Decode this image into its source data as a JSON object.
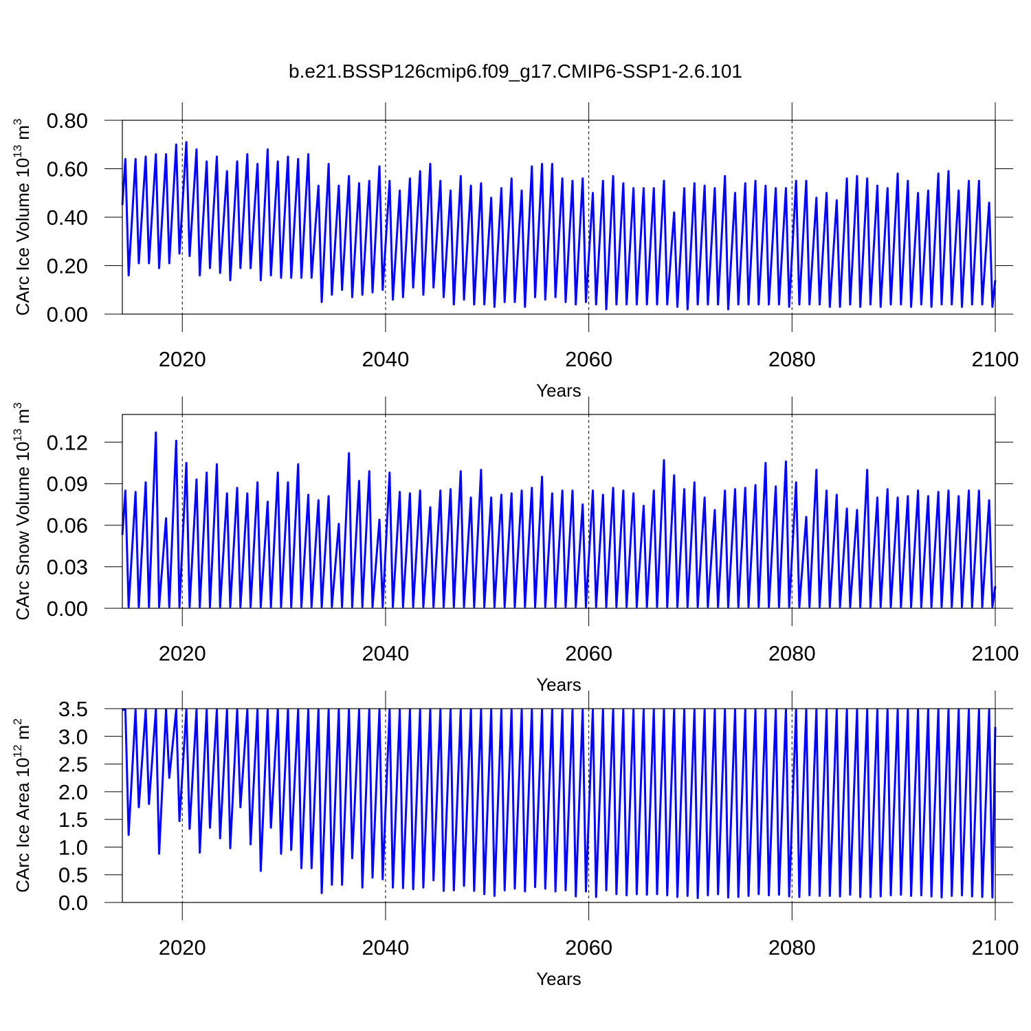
{
  "chart_data": [
    {
      "type": "line",
      "title": "b.e21.BSSP126cmip6.f09_g17.CMIP6-SSP1-2.6.101",
      "xlabel": "Years",
      "ylabel": {
        "text": "CArc Ice Volume 10",
        "exp": "13",
        "unit": "m",
        "unit_exp": "3"
      },
      "color": "#0000ff",
      "grid": true,
      "xlim": [
        2014.1,
        2100
      ],
      "xticks": [
        2020,
        2040,
        2060,
        2080,
        2100
      ],
      "ylim": [
        0,
        0.8
      ],
      "yticks": [
        {
          "value": 0,
          "label": "0.00"
        },
        {
          "value": 0.2,
          "label": "0.20"
        },
        {
          "value": 0.4,
          "label": "0.40"
        },
        {
          "value": 0.6,
          "label": "0.60"
        },
        {
          "value": 0.8,
          "label": "0.80"
        }
      ],
      "x": [
        2014.1,
        2014.4,
        2014.72,
        2015.4,
        2015.72,
        2016.4,
        2016.72,
        2017.4,
        2017.72,
        2018.4,
        2018.72,
        2019.4,
        2019.72,
        2020.4,
        2020.72,
        2021.4,
        2021.72,
        2022.4,
        2022.72,
        2023.4,
        2023.72,
        2024.4,
        2024.72,
        2025.4,
        2025.72,
        2026.4,
        2026.72,
        2027.4,
        2027.72,
        2028.4,
        2028.72,
        2029.4,
        2029.72,
        2030.4,
        2030.72,
        2031.4,
        2031.72,
        2032.4,
        2032.72,
        2033.4,
        2033.72,
        2034.4,
        2034.72,
        2035.4,
        2035.72,
        2036.4,
        2036.72,
        2037.4,
        2037.72,
        2038.4,
        2038.72,
        2039.4,
        2039.72,
        2040.4,
        2040.72,
        2041.4,
        2041.72,
        2042.4,
        2042.72,
        2043.4,
        2043.72,
        2044.4,
        2044.72,
        2045.4,
        2045.72,
        2046.4,
        2046.72,
        2047.4,
        2047.72,
        2048.4,
        2048.72,
        2049.4,
        2049.72,
        2050.4,
        2050.72,
        2051.4,
        2051.72,
        2052.4,
        2052.72,
        2053.4,
        2053.72,
        2054.4,
        2054.72,
        2055.4,
        2055.72,
        2056.4,
        2056.72,
        2057.4,
        2057.72,
        2058.4,
        2058.72,
        2059.4,
        2059.72,
        2060.4,
        2060.72,
        2061.4,
        2061.72,
        2062.4,
        2062.72,
        2063.4,
        2063.72,
        2064.4,
        2064.72,
        2065.4,
        2065.72,
        2066.4,
        2066.72,
        2067.4,
        2067.72,
        2068.4,
        2068.72,
        2069.4,
        2069.72,
        2070.4,
        2070.72,
        2071.4,
        2071.72,
        2072.4,
        2072.72,
        2073.4,
        2073.72,
        2074.4,
        2074.72,
        2075.4,
        2075.72,
        2076.4,
        2076.72,
        2077.4,
        2077.72,
        2078.4,
        2078.72,
        2079.4,
        2079.72,
        2080.4,
        2080.72,
        2081.4,
        2081.72,
        2082.4,
        2082.72,
        2083.4,
        2083.72,
        2084.4,
        2084.72,
        2085.4,
        2085.72,
        2086.4,
        2086.72,
        2087.4,
        2087.72,
        2088.4,
        2088.72,
        2089.4,
        2089.72,
        2090.4,
        2090.72,
        2091.4,
        2091.72,
        2092.4,
        2092.72,
        2093.4,
        2093.72,
        2094.4,
        2094.72,
        2095.4,
        2095.72,
        2096.4,
        2096.72,
        2097.4,
        2097.72,
        2098.4,
        2098.72,
        2099.4,
        2099.72,
        2100
      ],
      "values": [
        0.45,
        0.64,
        0.16,
        0.64,
        0.21,
        0.65,
        0.21,
        0.66,
        0.19,
        0.66,
        0.21,
        0.7,
        0.25,
        0.71,
        0.24,
        0.68,
        0.16,
        0.63,
        0.19,
        0.65,
        0.17,
        0.59,
        0.14,
        0.63,
        0.19,
        0.66,
        0.19,
        0.62,
        0.14,
        0.68,
        0.16,
        0.63,
        0.15,
        0.65,
        0.15,
        0.64,
        0.15,
        0.66,
        0.15,
        0.53,
        0.05,
        0.62,
        0.08,
        0.53,
        0.1,
        0.57,
        0.07,
        0.54,
        0.08,
        0.55,
        0.09,
        0.61,
        0.1,
        0.55,
        0.06,
        0.51,
        0.07,
        0.56,
        0.11,
        0.59,
        0.08,
        0.62,
        0.11,
        0.55,
        0.07,
        0.51,
        0.04,
        0.57,
        0.06,
        0.53,
        0.04,
        0.54,
        0.04,
        0.48,
        0.03,
        0.52,
        0.05,
        0.56,
        0.05,
        0.51,
        0.03,
        0.61,
        0.07,
        0.62,
        0.06,
        0.62,
        0.07,
        0.56,
        0.05,
        0.55,
        0.04,
        0.56,
        0.05,
        0.5,
        0.04,
        0.55,
        0.02,
        0.57,
        0.04,
        0.54,
        0.04,
        0.52,
        0.04,
        0.52,
        0.04,
        0.52,
        0.04,
        0.55,
        0.04,
        0.42,
        0.03,
        0.52,
        0.02,
        0.54,
        0.04,
        0.53,
        0.04,
        0.52,
        0.04,
        0.57,
        0.02,
        0.5,
        0.04,
        0.54,
        0.04,
        0.55,
        0.04,
        0.53,
        0.04,
        0.52,
        0.04,
        0.52,
        0.03,
        0.55,
        0.04,
        0.55,
        0.04,
        0.48,
        0.04,
        0.5,
        0.03,
        0.47,
        0.03,
        0.56,
        0.04,
        0.57,
        0.03,
        0.56,
        0.04,
        0.53,
        0.03,
        0.52,
        0.04,
        0.58,
        0.04,
        0.55,
        0.03,
        0.5,
        0.04,
        0.51,
        0.03,
        0.58,
        0.04,
        0.59,
        0.04,
        0.51,
        0.03,
        0.55,
        0.04,
        0.55,
        0.04,
        0.46,
        0.03,
        0.14
      ]
    },
    {
      "type": "line",
      "xlabel": "Years",
      "ylabel": {
        "text": "CArc Snow Volume 10",
        "exp": "13",
        "unit": "m",
        "unit_exp": "3"
      },
      "color": "#0000ff",
      "grid": true,
      "xlim": [
        2014.1,
        2100
      ],
      "xticks": [
        2020,
        2040,
        2060,
        2080,
        2100
      ],
      "ylim": [
        0,
        0.14
      ],
      "yticks": [
        {
          "value": 0,
          "label": "0.00"
        },
        0.03,
        0.06,
        0.09,
        0.12
      ],
      "x": [
        2014.1,
        2014.4,
        2014.72,
        2015.4,
        2015.72,
        2016.4,
        2016.72,
        2017.4,
        2017.72,
        2018.4,
        2018.72,
        2019.4,
        2019.72,
        2020.4,
        2020.72,
        2021.4,
        2021.72,
        2022.4,
        2022.72,
        2023.4,
        2023.72,
        2024.4,
        2024.72,
        2025.4,
        2025.72,
        2026.4,
        2026.72,
        2027.4,
        2027.72,
        2028.4,
        2028.72,
        2029.4,
        2029.72,
        2030.4,
        2030.72,
        2031.4,
        2031.72,
        2032.4,
        2032.72,
        2033.4,
        2033.72,
        2034.4,
        2034.72,
        2035.4,
        2035.72,
        2036.4,
        2036.72,
        2037.4,
        2037.72,
        2038.4,
        2038.72,
        2039.4,
        2039.72,
        2040.4,
        2040.72,
        2041.4,
        2041.72,
        2042.4,
        2042.72,
        2043.4,
        2043.72,
        2044.4,
        2044.72,
        2045.4,
        2045.72,
        2046.4,
        2046.72,
        2047.4,
        2047.72,
        2048.4,
        2048.72,
        2049.4,
        2049.72,
        2050.4,
        2050.72,
        2051.4,
        2051.72,
        2052.4,
        2052.72,
        2053.4,
        2053.72,
        2054.4,
        2054.72,
        2055.4,
        2055.72,
        2056.4,
        2056.72,
        2057.4,
        2057.72,
        2058.4,
        2058.72,
        2059.4,
        2059.72,
        2060.4,
        2060.72,
        2061.4,
        2061.72,
        2062.4,
        2062.72,
        2063.4,
        2063.72,
        2064.4,
        2064.72,
        2065.4,
        2065.72,
        2066.4,
        2066.72,
        2067.4,
        2067.72,
        2068.4,
        2068.72,
        2069.4,
        2069.72,
        2070.4,
        2070.72,
        2071.4,
        2071.72,
        2072.4,
        2072.72,
        2073.4,
        2073.72,
        2074.4,
        2074.72,
        2075.4,
        2075.72,
        2076.4,
        2076.72,
        2077.4,
        2077.72,
        2078.4,
        2078.72,
        2079.4,
        2079.72,
        2080.4,
        2080.72,
        2081.4,
        2081.72,
        2082.4,
        2082.72,
        2083.4,
        2083.72,
        2084.4,
        2084.72,
        2085.4,
        2085.72,
        2086.4,
        2086.72,
        2087.4,
        2087.72,
        2088.4,
        2088.72,
        2089.4,
        2089.72,
        2090.4,
        2090.72,
        2091.4,
        2091.72,
        2092.4,
        2092.72,
        2093.4,
        2093.72,
        2094.4,
        2094.72,
        2095.4,
        2095.72,
        2096.4,
        2096.72,
        2097.4,
        2097.72,
        2098.4,
        2098.72,
        2099.4,
        2099.72,
        2100
      ],
      "values": [
        0.053,
        0.085,
        0.001,
        0.084,
        0.001,
        0.091,
        0.001,
        0.127,
        0.001,
        0.065,
        0.001,
        0.121,
        0.001,
        0.105,
        0.001,
        0.093,
        0.001,
        0.098,
        0.001,
        0.104,
        0.001,
        0.083,
        0.001,
        0.087,
        0.001,
        0.083,
        0.001,
        0.091,
        0.001,
        0.077,
        0.001,
        0.098,
        0.001,
        0.091,
        0.001,
        0.104,
        0.001,
        0.082,
        0.001,
        0.078,
        0.001,
        0.081,
        0.001,
        0.061,
        0.001,
        0.112,
        0.001,
        0.092,
        0.001,
        0.099,
        0.001,
        0.064,
        0.001,
        0.098,
        0.001,
        0.084,
        0.001,
        0.083,
        0.001,
        0.085,
        0.001,
        0.073,
        0.001,
        0.085,
        0.001,
        0.086,
        0.001,
        0.099,
        0.001,
        0.08,
        0.001,
        0.1,
        0.001,
        0.08,
        0.001,
        0.082,
        0.001,
        0.083,
        0.001,
        0.085,
        0.001,
        0.087,
        0.001,
        0.095,
        0.001,
        0.083,
        0.001,
        0.085,
        0.001,
        0.085,
        0.001,
        0.075,
        0.001,
        0.085,
        0.001,
        0.082,
        0.001,
        0.087,
        0.001,
        0.085,
        0.001,
        0.083,
        0.001,
        0.074,
        0.001,
        0.085,
        0.001,
        0.107,
        0.001,
        0.096,
        0.001,
        0.086,
        0.001,
        0.091,
        0.001,
        0.08,
        0.001,
        0.071,
        0.001,
        0.085,
        0.001,
        0.086,
        0.001,
        0.087,
        0.001,
        0.089,
        0.001,
        0.105,
        0.001,
        0.088,
        0.001,
        0.106,
        0.001,
        0.091,
        0.001,
        0.066,
        0.001,
        0.1,
        0.001,
        0.085,
        0.001,
        0.082,
        0.001,
        0.072,
        0.001,
        0.071,
        0.001,
        0.1,
        0.001,
        0.08,
        0.001,
        0.086,
        0.001,
        0.08,
        0.001,
        0.081,
        0.001,
        0.085,
        0.001,
        0.081,
        0.001,
        0.084,
        0.001,
        0.085,
        0.001,
        0.081,
        0.001,
        0.085,
        0.001,
        0.085,
        0.001,
        0.078,
        0.001,
        0.016
      ]
    },
    {
      "type": "line",
      "xlabel": "Years",
      "ylabel": {
        "text": "CArc Ice Area 10",
        "exp": "12",
        "unit": "m",
        "unit_exp": "2"
      },
      "color": "#0000ff",
      "grid": true,
      "xlim": [
        2014.1,
        2100
      ],
      "xticks": [
        2020,
        2040,
        2060,
        2080,
        2100
      ],
      "ylim": [
        0,
        3.5
      ],
      "yticks": [
        {
          "value": 0,
          "label": "0.0"
        },
        0.5,
        {
          "value": 1,
          "label": "1.0"
        },
        1.5,
        {
          "value": 2,
          "label": "2.0"
        },
        2.5,
        {
          "value": 3,
          "label": "3.0"
        },
        3.5
      ],
      "x": [
        2014.1,
        2014.4,
        2014.72,
        2015.4,
        2015.72,
        2016.4,
        2016.72,
        2017.4,
        2017.72,
        2018.4,
        2018.72,
        2019.4,
        2019.72,
        2020.4,
        2020.72,
        2021.4,
        2021.72,
        2022.4,
        2022.72,
        2023.4,
        2023.72,
        2024.4,
        2024.72,
        2025.4,
        2025.72,
        2026.4,
        2026.72,
        2027.4,
        2027.72,
        2028.4,
        2028.72,
        2029.4,
        2029.72,
        2030.4,
        2030.72,
        2031.4,
        2031.72,
        2032.4,
        2032.72,
        2033.4,
        2033.72,
        2034.4,
        2034.72,
        2035.4,
        2035.72,
        2036.4,
        2036.72,
        2037.4,
        2037.72,
        2038.4,
        2038.72,
        2039.4,
        2039.72,
        2040.4,
        2040.72,
        2041.4,
        2041.72,
        2042.4,
        2042.72,
        2043.4,
        2043.72,
        2044.4,
        2044.72,
        2045.4,
        2045.72,
        2046.4,
        2046.72,
        2047.4,
        2047.72,
        2048.4,
        2048.72,
        2049.4,
        2049.72,
        2050.4,
        2050.72,
        2051.4,
        2051.72,
        2052.4,
        2052.72,
        2053.4,
        2053.72,
        2054.4,
        2054.72,
        2055.4,
        2055.72,
        2056.4,
        2056.72,
        2057.4,
        2057.72,
        2058.4,
        2058.72,
        2059.4,
        2059.72,
        2060.4,
        2060.72,
        2061.4,
        2061.72,
        2062.4,
        2062.72,
        2063.4,
        2063.72,
        2064.4,
        2064.72,
        2065.4,
        2065.72,
        2066.4,
        2066.72,
        2067.4,
        2067.72,
        2068.4,
        2068.72,
        2069.4,
        2069.72,
        2070.4,
        2070.72,
        2071.4,
        2071.72,
        2072.4,
        2072.72,
        2073.4,
        2073.72,
        2074.4,
        2074.72,
        2075.4,
        2075.72,
        2076.4,
        2076.72,
        2077.4,
        2077.72,
        2078.4,
        2078.72,
        2079.4,
        2079.72,
        2080.4,
        2080.72,
        2081.4,
        2081.72,
        2082.4,
        2082.72,
        2083.4,
        2083.72,
        2084.4,
        2084.72,
        2085.4,
        2085.72,
        2086.4,
        2086.72,
        2087.4,
        2087.72,
        2088.4,
        2088.72,
        2089.4,
        2089.72,
        2090.4,
        2090.72,
        2091.4,
        2091.72,
        2092.4,
        2092.72,
        2093.4,
        2093.72,
        2094.4,
        2094.72,
        2095.4,
        2095.72,
        2096.4,
        2096.72,
        2097.4,
        2097.72,
        2098.4,
        2098.72,
        2099.4,
        2099.72,
        2100
      ],
      "values": [
        3.48,
        3.48,
        1.22,
        3.48,
        1.72,
        3.48,
        1.78,
        3.48,
        0.88,
        3.48,
        2.25,
        3.48,
        1.47,
        3.48,
        1.33,
        3.48,
        0.9,
        3.48,
        1.35,
        3.48,
        1.16,
        3.48,
        0.98,
        3.48,
        1.72,
        3.48,
        1.05,
        3.48,
        0.57,
        3.48,
        1.35,
        3.48,
        0.88,
        3.48,
        0.95,
        3.48,
        0.62,
        3.48,
        0.62,
        3.48,
        0.17,
        3.48,
        0.32,
        3.48,
        0.32,
        3.48,
        0.8,
        3.48,
        0.27,
        3.48,
        0.45,
        3.48,
        0.42,
        3.48,
        0.27,
        3.48,
        0.26,
        3.48,
        0.24,
        3.48,
        0.27,
        3.48,
        0.4,
        3.48,
        0.21,
        3.48,
        0.22,
        3.48,
        0.3,
        3.48,
        0.21,
        3.48,
        0.15,
        3.48,
        0.12,
        3.48,
        0.22,
        3.48,
        0.25,
        3.48,
        0.2,
        3.48,
        0.28,
        3.48,
        0.25,
        3.48,
        0.2,
        3.48,
        0.22,
        3.48,
        0.11,
        3.48,
        0.2,
        3.48,
        0.1,
        3.48,
        0.22,
        3.48,
        0.15,
        3.48,
        0.13,
        3.48,
        0.15,
        3.48,
        0.14,
        3.48,
        0.15,
        3.48,
        0.13,
        3.48,
        0.1,
        3.48,
        0.12,
        3.48,
        0.08,
        3.48,
        0.13,
        3.48,
        0.15,
        3.48,
        0.09,
        3.48,
        0.1,
        3.48,
        0.12,
        3.48,
        0.15,
        3.48,
        0.13,
        3.48,
        0.14,
        3.48,
        0.11,
        3.48,
        0.1,
        3.48,
        0.13,
        3.48,
        0.12,
        3.48,
        0.12,
        3.48,
        0.11,
        3.48,
        0.14,
        3.48,
        0.1,
        3.48,
        0.1,
        3.48,
        0.11,
        3.48,
        0.13,
        3.48,
        0.14,
        3.48,
        0.12,
        3.48,
        0.13,
        3.48,
        0.11,
        3.48,
        0.09,
        3.48,
        0.12,
        3.48,
        0.13,
        3.48,
        0.11,
        3.48,
        0.1,
        3.48,
        0.09,
        3.17
      ]
    }
  ]
}
